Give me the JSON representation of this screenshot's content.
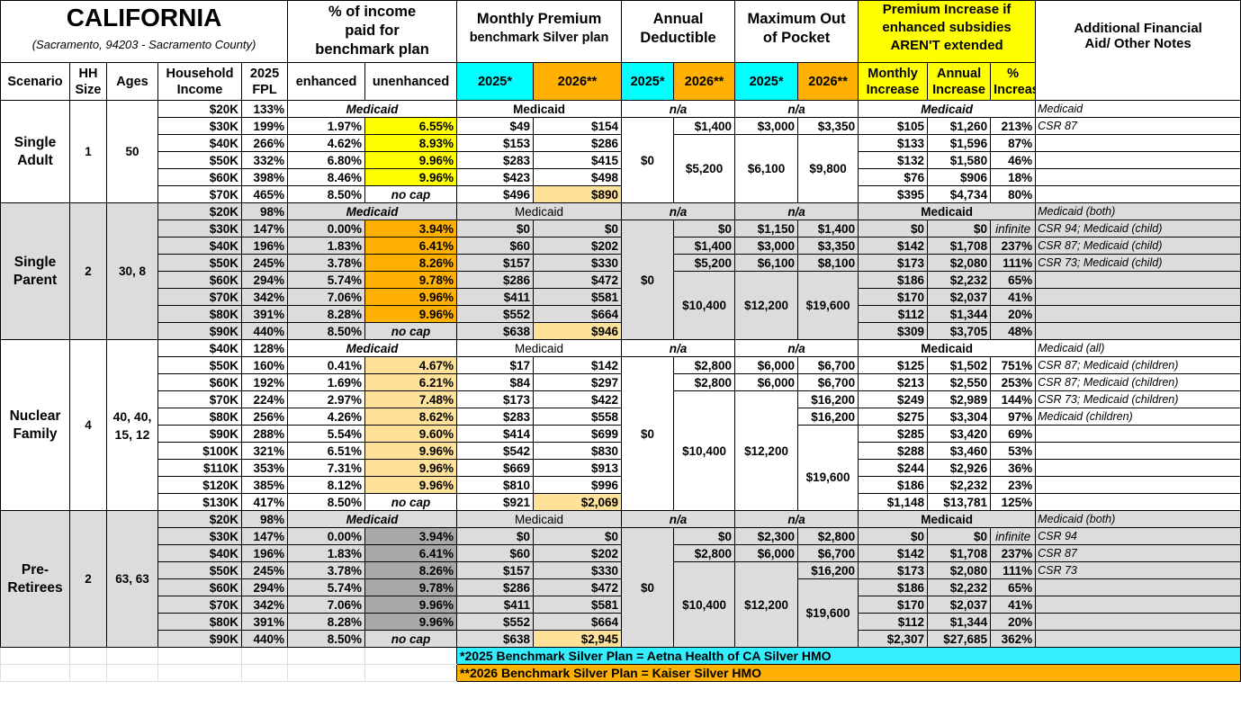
{
  "title": "CALIFORNIA",
  "subtitle": "(Sacramento, 94203 - Sacramento County)",
  "headers": {
    "pct_income": "% of income paid for benchmark plan",
    "monthly_premium_1": "Monthly Premium",
    "monthly_premium_2": "benchmark Silver plan",
    "deductible": "Annual Deductible",
    "max_oop": "Maximum Out of Pocket",
    "premium_increase": "Premium Increase if enhanced subsidies AREN'T extended",
    "aid_notes": "Additional Financial Aid/ Other Notes"
  },
  "columns": {
    "scenario": "Scenario",
    "hh_size": "HH Size",
    "ages": "Ages",
    "income": "Household Income",
    "fpl": "2025 FPL",
    "enhanced": "enhanced",
    "unenhanced": "unenhanced",
    "y2025": "2025*",
    "y2026": "2026**",
    "monthly_increase": "Monthly Increase",
    "annual_increase": "Annual Increase",
    "pct_increase": "% Increase"
  },
  "scenarios": {
    "single_adult": {
      "name": "Single Adult",
      "hh": "1",
      "ages": "50"
    },
    "single_parent": {
      "name": "Single Parent",
      "hh": "2",
      "ages": "30, 8"
    },
    "nuclear_family": {
      "name": "Nuclear Family",
      "hh": "4",
      "ages": "40, 40, 15, 12"
    },
    "pre_retirees": {
      "name": "Pre-Retirees",
      "hh": "2",
      "ages": "63, 63"
    }
  },
  "merged": {
    "sa": {
      "ded25": "$0",
      "ded26a": "$1,400",
      "ded26b": "$5,200",
      "oop25a": "$3,000",
      "oop26a": "$3,350",
      "oop25b": "$6,100",
      "oop26b": "$9,800"
    },
    "sp": {
      "ded25": "$0",
      "ded26big": "$10,400",
      "oop25big": "$12,200",
      "oop26big": "$19,600"
    },
    "nf": {
      "ded25": "$0",
      "ded26big": "$10,400",
      "oop25big": "$12,200",
      "oop26big": "$19,600"
    },
    "pr": {
      "ded25": "$0",
      "ded26big": "$10,400",
      "oop25big": "$12,200",
      "oop26big": "$19,600"
    }
  },
  "rows": {
    "sa": [
      {
        "income": "$20K",
        "fpl": "133%",
        "medicaid": "Medicaid",
        "prem": "Medicaid",
        "ded": "n/a",
        "oop": "n/a",
        "inc": "Medicaid",
        "note": "Medicaid"
      },
      {
        "income": "$30K",
        "fpl": "199%",
        "enh": "1.97%",
        "unenh": "6.55%",
        "p25": "$49",
        "p26": "$154",
        "mi": "$105",
        "ai": "$1,260",
        "pi": "213%",
        "note": "CSR 87"
      },
      {
        "income": "$40K",
        "fpl": "266%",
        "enh": "4.62%",
        "unenh": "8.93%",
        "p25": "$153",
        "p26": "$286",
        "mi": "$133",
        "ai": "$1,596",
        "pi": "87%",
        "note": ""
      },
      {
        "income": "$50K",
        "fpl": "332%",
        "enh": "6.80%",
        "unenh": "9.96%",
        "p25": "$283",
        "p26": "$415",
        "mi": "$132",
        "ai": "$1,580",
        "pi": "46%",
        "note": ""
      },
      {
        "income": "$60K",
        "fpl": "398%",
        "enh": "8.46%",
        "unenh": "9.96%",
        "p25": "$423",
        "p26": "$498",
        "mi": "$76",
        "ai": "$906",
        "pi": "18%",
        "note": ""
      },
      {
        "income": "$70K",
        "fpl": "465%",
        "enh": "8.50%",
        "unenh": "no cap",
        "p25": "$496",
        "p26": "$890",
        "mi": "$395",
        "ai": "$4,734",
        "pi": "80%",
        "note": ""
      }
    ],
    "sp": [
      {
        "income": "$20K",
        "fpl": "98%",
        "medicaid": "Medicaid",
        "prem": "Medicaid",
        "ded": "n/a",
        "oop": "n/a",
        "inc": "Medicaid",
        "note": "Medicaid (both)"
      },
      {
        "income": "$30K",
        "fpl": "147%",
        "enh": "0.00%",
        "unenh": "3.94%",
        "p25": "$0",
        "p26": "$0",
        "d26": "$0",
        "o25": "$1,150",
        "o26": "$1,400",
        "mi": "$0",
        "ai": "$0",
        "pi": "infinite",
        "note": "CSR 94; Medicaid (child)"
      },
      {
        "income": "$40K",
        "fpl": "196%",
        "enh": "1.83%",
        "unenh": "6.41%",
        "p25": "$60",
        "p26": "$202",
        "d26": "$1,400",
        "o25": "$3,000",
        "o26": "$3,350",
        "mi": "$142",
        "ai": "$1,708",
        "pi": "237%",
        "note": "CSR 87; Medicaid (child)"
      },
      {
        "income": "$50K",
        "fpl": "245%",
        "enh": "3.78%",
        "unenh": "8.26%",
        "p25": "$157",
        "p26": "$330",
        "d26": "$5,200",
        "o25": "$6,100",
        "o26": "$8,100",
        "mi": "$173",
        "ai": "$2,080",
        "pi": "111%",
        "note": "CSR 73; Medicaid (child)"
      },
      {
        "income": "$60K",
        "fpl": "294%",
        "enh": "5.74%",
        "unenh": "9.78%",
        "p25": "$286",
        "p26": "$472",
        "mi": "$186",
        "ai": "$2,232",
        "pi": "65%",
        "note": ""
      },
      {
        "income": "$70K",
        "fpl": "342%",
        "enh": "7.06%",
        "unenh": "9.96%",
        "p25": "$411",
        "p26": "$581",
        "mi": "$170",
        "ai": "$2,037",
        "pi": "41%",
        "note": ""
      },
      {
        "income": "$80K",
        "fpl": "391%",
        "enh": "8.28%",
        "unenh": "9.96%",
        "p25": "$552",
        "p26": "$664",
        "mi": "$112",
        "ai": "$1,344",
        "pi": "20%",
        "note": ""
      },
      {
        "income": "$90K",
        "fpl": "440%",
        "enh": "8.50%",
        "unenh": "no cap",
        "p25": "$638",
        "p26": "$946",
        "mi": "$309",
        "ai": "$3,705",
        "pi": "48%",
        "note": ""
      }
    ],
    "nf": [
      {
        "income": "$40K",
        "fpl": "128%",
        "medicaid": "Medicaid",
        "prem": "Medicaid",
        "ded": "n/a",
        "oop": "n/a",
        "inc": "Medicaid",
        "note": "Medicaid (all)"
      },
      {
        "income": "$50K",
        "fpl": "160%",
        "enh": "0.41%",
        "unenh": "4.67%",
        "p25": "$17",
        "p26": "$142",
        "d26": "$2,800",
        "o25": "$6,000",
        "o26": "$6,700",
        "mi": "$125",
        "ai": "$1,502",
        "pi": "751%",
        "note": "CSR 87; Medicaid (children)"
      },
      {
        "income": "$60K",
        "fpl": "192%",
        "enh": "1.69%",
        "unenh": "6.21%",
        "p25": "$84",
        "p26": "$297",
        "d26": "$2,800",
        "o25": "$6,000",
        "o26": "$6,700",
        "mi": "$213",
        "ai": "$2,550",
        "pi": "253%",
        "note": "CSR 87; Medicaid (children)"
      },
      {
        "income": "$70K",
        "fpl": "224%",
        "enh": "2.97%",
        "unenh": "7.48%",
        "p25": "$173",
        "p26": "$422",
        "o26": "$16,200",
        "mi": "$249",
        "ai": "$2,989",
        "pi": "144%",
        "note": "CSR 73; Medicaid (children)"
      },
      {
        "income": "$80K",
        "fpl": "256%",
        "enh": "4.26%",
        "unenh": "8.62%",
        "p25": "$283",
        "p26": "$558",
        "o26": "$16,200",
        "mi": "$275",
        "ai": "$3,304",
        "pi": "97%",
        "note": "Medicaid (children)"
      },
      {
        "income": "$90K",
        "fpl": "288%",
        "enh": "5.54%",
        "unenh": "9.60%",
        "p25": "$414",
        "p26": "$699",
        "mi": "$285",
        "ai": "$3,420",
        "pi": "69%",
        "note": ""
      },
      {
        "income": "$100K",
        "fpl": "321%",
        "enh": "6.51%",
        "unenh": "9.96%",
        "p25": "$542",
        "p26": "$830",
        "mi": "$288",
        "ai": "$3,460",
        "pi": "53%",
        "note": ""
      },
      {
        "income": "$110K",
        "fpl": "353%",
        "enh": "7.31%",
        "unenh": "9.96%",
        "p25": "$669",
        "p26": "$913",
        "mi": "$244",
        "ai": "$2,926",
        "pi": "36%",
        "note": ""
      },
      {
        "income": "$120K",
        "fpl": "385%",
        "enh": "8.12%",
        "unenh": "9.96%",
        "p25": "$810",
        "p26": "$996",
        "mi": "$186",
        "ai": "$2,232",
        "pi": "23%",
        "note": ""
      },
      {
        "income": "$130K",
        "fpl": "417%",
        "enh": "8.50%",
        "unenh": "no cap",
        "p25": "$921",
        "p26": "$2,069",
        "mi": "$1,148",
        "ai": "$13,781",
        "pi": "125%",
        "note": ""
      }
    ],
    "pr": [
      {
        "income": "$20K",
        "fpl": "98%",
        "medicaid": "Medicaid",
        "prem": "Medicaid",
        "ded": "n/a",
        "oop": "n/a",
        "inc": "Medicaid",
        "note": "Medicaid (both)"
      },
      {
        "income": "$30K",
        "fpl": "147%",
        "enh": "0.00%",
        "unenh": "3.94%",
        "p25": "$0",
        "p26": "$0",
        "d26": "$0",
        "o25": "$2,300",
        "o26": "$2,800",
        "mi": "$0",
        "ai": "$0",
        "pi": "infinite",
        "note": "CSR 94"
      },
      {
        "income": "$40K",
        "fpl": "196%",
        "enh": "1.83%",
        "unenh": "6.41%",
        "p25": "$60",
        "p26": "$202",
        "d26": "$2,800",
        "o25": "$6,000",
        "o26": "$6,700",
        "mi": "$142",
        "ai": "$1,708",
        "pi": "237%",
        "note": "CSR 87"
      },
      {
        "income": "$50K",
        "fpl": "245%",
        "enh": "3.78%",
        "unenh": "8.26%",
        "p25": "$157",
        "p26": "$330",
        "o26": "$16,200",
        "mi": "$173",
        "ai": "$2,080",
        "pi": "111%",
        "note": "CSR 73"
      },
      {
        "income": "$60K",
        "fpl": "294%",
        "enh": "5.74%",
        "unenh": "9.78%",
        "p25": "$286",
        "p26": "$472",
        "mi": "$186",
        "ai": "$2,232",
        "pi": "65%",
        "note": ""
      },
      {
        "income": "$70K",
        "fpl": "342%",
        "enh": "7.06%",
        "unenh": "9.96%",
        "p25": "$411",
        "p26": "$581",
        "mi": "$170",
        "ai": "$2,037",
        "pi": "41%",
        "note": ""
      },
      {
        "income": "$80K",
        "fpl": "391%",
        "enh": "8.28%",
        "unenh": "9.96%",
        "p25": "$552",
        "p26": "$664",
        "mi": "$112",
        "ai": "$1,344",
        "pi": "20%",
        "note": ""
      },
      {
        "income": "$90K",
        "fpl": "440%",
        "enh": "8.50%",
        "unenh": "no cap",
        "p25": "$638",
        "p26": "$2,945",
        "mi": "$2,307",
        "ai": "$27,685",
        "pi": "362%",
        "note": ""
      }
    ]
  },
  "footnotes": {
    "f2025": "*2025 Benchmark Silver Plan = Aetna Health of CA Silver HMO",
    "f2026": "**2026 Benchmark Silver Plan = Kaiser Silver HMO"
  },
  "colors": {
    "cyan": "#00ffff",
    "orange": "#ffb000",
    "yellow": "#ffff00",
    "light_orange": "#ffe29a",
    "gray": "#dcdcdc",
    "dark_gray": "#a9a9a9"
  }
}
